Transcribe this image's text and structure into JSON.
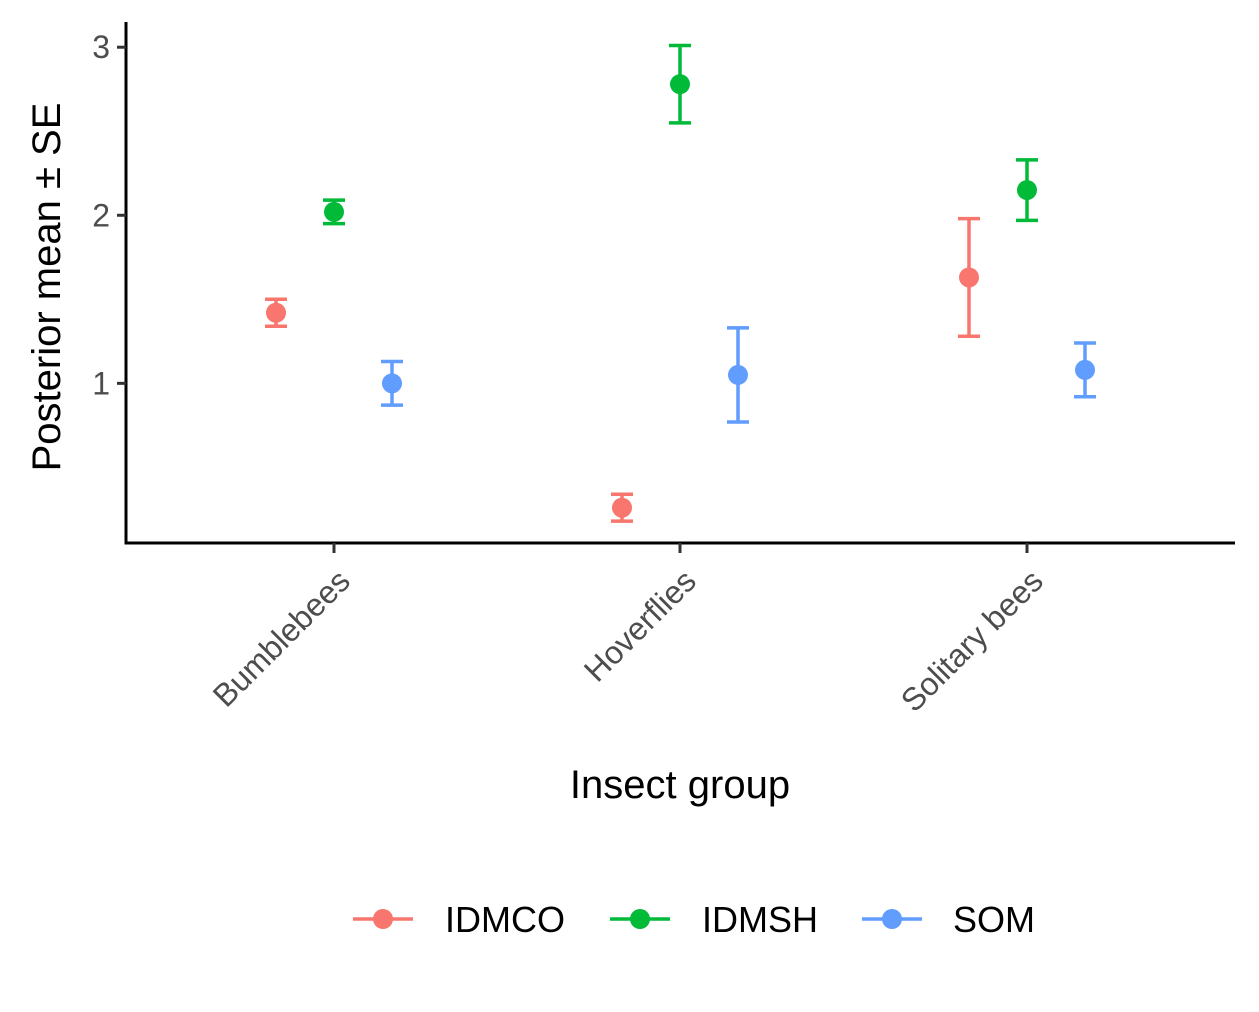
{
  "chart_data": {
    "type": "scatter",
    "subtype": "point-with-errorbars",
    "title": "",
    "xlabel": "Insect group",
    "ylabel": "Posterior mean ± SE",
    "categories": [
      "Bumblebees",
      "Hoverflies",
      "Solitary bees"
    ],
    "ylim": [
      0.05,
      3.15
    ],
    "yticks": [
      1,
      2,
      3
    ],
    "grid": false,
    "legend_position": "bottom",
    "series": [
      {
        "name": "IDMCO",
        "color": "#F8766D",
        "values": [
          1.42,
          0.26,
          1.63
        ],
        "lower": [
          1.34,
          0.18,
          1.28
        ],
        "upper": [
          1.5,
          0.34,
          1.98
        ]
      },
      {
        "name": "IDMSH",
        "color": "#00BA38",
        "values": [
          2.02,
          2.78,
          2.15
        ],
        "lower": [
          1.95,
          2.55,
          1.97
        ],
        "upper": [
          2.09,
          3.01,
          2.33
        ]
      },
      {
        "name": "SOM",
        "color": "#619CFF",
        "values": [
          1.0,
          1.05,
          1.08
        ],
        "lower": [
          0.87,
          0.77,
          0.92
        ],
        "upper": [
          1.13,
          1.33,
          1.24
        ]
      }
    ]
  }
}
